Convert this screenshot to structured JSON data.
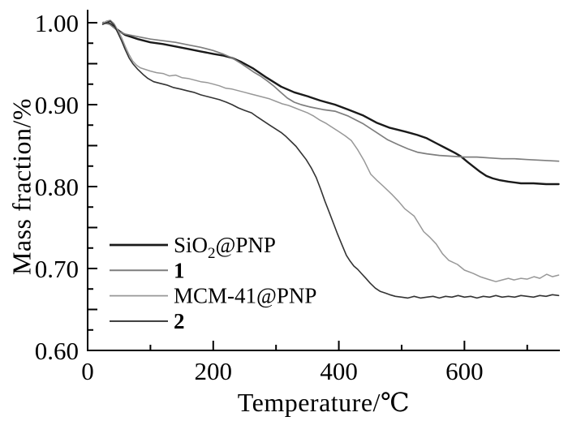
{
  "chart_data": {
    "type": "line",
    "title": "",
    "xlabel": "Temperature/℃",
    "ylabel": "Mass fraction/%",
    "xlim": [
      0,
      752
    ],
    "ylim": [
      0.6,
      1.0
    ],
    "x_major_tick_step": 200,
    "x_minor_tick_step": 100,
    "x_tick_labels": [
      "0",
      "200",
      "400",
      "600"
    ],
    "x_tick_label_values": [
      0,
      200,
      400,
      600
    ],
    "y_tick_minor_step": 0.025,
    "y_tick_labels": [
      "1.00",
      "0.90",
      "0.80",
      "0.70",
      "0.60"
    ],
    "y_tick_label_values": [
      1.0,
      0.9,
      0.8,
      0.7,
      0.6
    ],
    "grid": "off",
    "axis_color": "#000000",
    "legend": {
      "position": "lower-left",
      "entries": [
        {
          "label": "SiO2@PNP",
          "label_main": "SiO",
          "label_sub": "2",
          "label_rest": "@PNP",
          "bold": false,
          "color": "#1a1a1a",
          "linewidth": 2.4
        },
        {
          "label": "1",
          "label_main": "1",
          "label_sub": "",
          "label_rest": "",
          "bold": true,
          "color": "#7e7e7e",
          "linewidth": 1.7
        },
        {
          "label": "MCM-41@PNP",
          "label_main": "MCM-41@PNP",
          "label_sub": "",
          "label_rest": "",
          "bold": false,
          "color": "#989898",
          "linewidth": 1.5
        },
        {
          "label": "2",
          "label_main": "2",
          "label_sub": "",
          "label_rest": "",
          "bold": true,
          "color": "#333333",
          "linewidth": 1.6
        }
      ]
    },
    "series": [
      {
        "name": "SiO2@PNP",
        "color": "#1a1a1a",
        "linewidth": 2.4,
        "style": "smooth",
        "points": [
          [
            25,
            1.0
          ],
          [
            35,
            0.999
          ],
          [
            45,
            0.993
          ],
          [
            50,
            0.99
          ],
          [
            60,
            0.985
          ],
          [
            80,
            0.98
          ],
          [
            100,
            0.976
          ],
          [
            120,
            0.974
          ],
          [
            140,
            0.971
          ],
          [
            160,
            0.968
          ],
          [
            180,
            0.965
          ],
          [
            200,
            0.962
          ],
          [
            215,
            0.96
          ],
          [
            230,
            0.957
          ],
          [
            245,
            0.952
          ],
          [
            264,
            0.944
          ],
          [
            285,
            0.933
          ],
          [
            308,
            0.922
          ],
          [
            329,
            0.915
          ],
          [
            351,
            0.91
          ],
          [
            370,
            0.905
          ],
          [
            394,
            0.9
          ],
          [
            415,
            0.894
          ],
          [
            438,
            0.887
          ],
          [
            460,
            0.878
          ],
          [
            480,
            0.872
          ],
          [
            506,
            0.867
          ],
          [
            525,
            0.863
          ],
          [
            540,
            0.859
          ],
          [
            555,
            0.853
          ],
          [
            570,
            0.847
          ],
          [
            585,
            0.841
          ],
          [
            594,
            0.837
          ],
          [
            605,
            0.83
          ],
          [
            615,
            0.824
          ],
          [
            625,
            0.818
          ],
          [
            635,
            0.813
          ],
          [
            645,
            0.81
          ],
          [
            655,
            0.808
          ],
          [
            670,
            0.806
          ],
          [
            690,
            0.804
          ],
          [
            710,
            0.804
          ],
          [
            730,
            0.803
          ],
          [
            750,
            0.803
          ]
        ]
      },
      {
        "name": "1",
        "color": "#7e7e7e",
        "linewidth": 1.7,
        "style": "smooth",
        "points": [
          [
            25,
            1.0
          ],
          [
            35,
            0.998
          ],
          [
            45,
            0.992
          ],
          [
            50,
            0.989
          ],
          [
            60,
            0.986
          ],
          [
            80,
            0.983
          ],
          [
            100,
            0.98
          ],
          [
            120,
            0.978
          ],
          [
            140,
            0.976
          ],
          [
            160,
            0.973
          ],
          [
            180,
            0.97
          ],
          [
            200,
            0.966
          ],
          [
            215,
            0.962
          ],
          [
            230,
            0.957
          ],
          [
            245,
            0.95
          ],
          [
            264,
            0.94
          ],
          [
            275,
            0.935
          ],
          [
            286,
            0.929
          ],
          [
            296,
            0.923
          ],
          [
            306,
            0.916
          ],
          [
            318,
            0.908
          ],
          [
            329,
            0.903
          ],
          [
            340,
            0.9
          ],
          [
            355,
            0.897
          ],
          [
            375,
            0.894
          ],
          [
            394,
            0.892
          ],
          [
            415,
            0.886
          ],
          [
            438,
            0.877
          ],
          [
            458,
            0.867
          ],
          [
            478,
            0.857
          ],
          [
            495,
            0.851
          ],
          [
            510,
            0.846
          ],
          [
            525,
            0.842
          ],
          [
            540,
            0.84
          ],
          [
            560,
            0.838
          ],
          [
            580,
            0.837
          ],
          [
            600,
            0.836
          ],
          [
            620,
            0.836
          ],
          [
            640,
            0.835
          ],
          [
            660,
            0.834
          ],
          [
            680,
            0.834
          ],
          [
            700,
            0.833
          ],
          [
            725,
            0.832
          ],
          [
            750,
            0.831
          ]
        ]
      },
      {
        "name": "MCM-41@PNP",
        "color": "#989898",
        "linewidth": 1.5,
        "style": "noisy",
        "points": [
          [
            24,
            0.999
          ],
          [
            30,
            1.002
          ],
          [
            36,
            1.003
          ],
          [
            42,
            0.999
          ],
          [
            48,
            0.991
          ],
          [
            54,
            0.982
          ],
          [
            60,
            0.971
          ],
          [
            66,
            0.961
          ],
          [
            72,
            0.953
          ],
          [
            78,
            0.948
          ],
          [
            84,
            0.945
          ],
          [
            92,
            0.943
          ],
          [
            100,
            0.941
          ],
          [
            110,
            0.939
          ],
          [
            120,
            0.938
          ],
          [
            130,
            0.935
          ],
          [
            140,
            0.936
          ],
          [
            150,
            0.933
          ],
          [
            160,
            0.932
          ],
          [
            170,
            0.93
          ],
          [
            180,
            0.928
          ],
          [
            190,
            0.927
          ],
          [
            200,
            0.925
          ],
          [
            210,
            0.923
          ],
          [
            220,
            0.92
          ],
          [
            230,
            0.919
          ],
          [
            240,
            0.917
          ],
          [
            250,
            0.915
          ],
          [
            260,
            0.913
          ],
          [
            270,
            0.911
          ],
          [
            280,
            0.909
          ],
          [
            290,
            0.907
          ],
          [
            300,
            0.904
          ],
          [
            310,
            0.901
          ],
          [
            320,
            0.899
          ],
          [
            330,
            0.896
          ],
          [
            340,
            0.893
          ],
          [
            350,
            0.89
          ],
          [
            360,
            0.886
          ],
          [
            370,
            0.881
          ],
          [
            380,
            0.877
          ],
          [
            390,
            0.872
          ],
          [
            400,
            0.867
          ],
          [
            410,
            0.862
          ],
          [
            420,
            0.856
          ],
          [
            430,
            0.845
          ],
          [
            440,
            0.832
          ],
          [
            451,
            0.815
          ],
          [
            460,
            0.808
          ],
          [
            470,
            0.801
          ],
          [
            485,
            0.79
          ],
          [
            495,
            0.782
          ],
          [
            505,
            0.773
          ],
          [
            520,
            0.764
          ],
          [
            535,
            0.745
          ],
          [
            545,
            0.738
          ],
          [
            555,
            0.73
          ],
          [
            565,
            0.718
          ],
          [
            575,
            0.71
          ],
          [
            589,
            0.705
          ],
          [
            600,
            0.698
          ],
          [
            614,
            0.694
          ],
          [
            625,
            0.69
          ],
          [
            637,
            0.687
          ],
          [
            650,
            0.684
          ],
          [
            660,
            0.686
          ],
          [
            670,
            0.688
          ],
          [
            679,
            0.686
          ],
          [
            690,
            0.688
          ],
          [
            700,
            0.687
          ],
          [
            711,
            0.69
          ],
          [
            720,
            0.688
          ],
          [
            731,
            0.693
          ],
          [
            740,
            0.69
          ],
          [
            750,
            0.692
          ]
        ]
      },
      {
        "name": "2",
        "color": "#333333",
        "linewidth": 1.6,
        "style": "noisy",
        "points": [
          [
            24,
            0.998
          ],
          [
            30,
            1.0
          ],
          [
            36,
            1.002
          ],
          [
            42,
            0.997
          ],
          [
            48,
            0.988
          ],
          [
            54,
            0.978
          ],
          [
            60,
            0.967
          ],
          [
            66,
            0.957
          ],
          [
            72,
            0.95
          ],
          [
            80,
            0.943
          ],
          [
            88,
            0.937
          ],
          [
            96,
            0.932
          ],
          [
            105,
            0.928
          ],
          [
            115,
            0.926
          ],
          [
            126,
            0.924
          ],
          [
            136,
            0.921
          ],
          [
            148,
            0.919
          ],
          [
            158,
            0.917
          ],
          [
            169,
            0.915
          ],
          [
            180,
            0.912
          ],
          [
            190,
            0.91
          ],
          [
            200,
            0.908
          ],
          [
            210,
            0.906
          ],
          [
            221,
            0.903
          ],
          [
            230,
            0.9
          ],
          [
            240,
            0.896
          ],
          [
            250,
            0.893
          ],
          [
            261,
            0.89
          ],
          [
            270,
            0.885
          ],
          [
            280,
            0.88
          ],
          [
            290,
            0.875
          ],
          [
            300,
            0.87
          ],
          [
            308,
            0.866
          ],
          [
            316,
            0.861
          ],
          [
            324,
            0.855
          ],
          [
            332,
            0.849
          ],
          [
            340,
            0.841
          ],
          [
            348,
            0.833
          ],
          [
            356,
            0.823
          ],
          [
            364,
            0.811
          ],
          [
            371,
            0.797
          ],
          [
            378,
            0.782
          ],
          [
            385,
            0.768
          ],
          [
            392,
            0.754
          ],
          [
            398,
            0.742
          ],
          [
            405,
            0.729
          ],
          [
            412,
            0.716
          ],
          [
            418,
            0.709
          ],
          [
            424,
            0.703
          ],
          [
            430,
            0.699
          ],
          [
            436,
            0.694
          ],
          [
            443,
            0.688
          ],
          [
            450,
            0.682
          ],
          [
            458,
            0.676
          ],
          [
            466,
            0.672
          ],
          [
            474,
            0.67
          ],
          [
            481,
            0.668
          ],
          [
            490,
            0.666
          ],
          [
            500,
            0.665
          ],
          [
            510,
            0.664
          ],
          [
            520,
            0.666
          ],
          [
            530,
            0.664
          ],
          [
            540,
            0.665
          ],
          [
            550,
            0.666
          ],
          [
            560,
            0.664
          ],
          [
            570,
            0.666
          ],
          [
            580,
            0.665
          ],
          [
            590,
            0.667
          ],
          [
            600,
            0.665
          ],
          [
            610,
            0.666
          ],
          [
            620,
            0.664
          ],
          [
            630,
            0.666
          ],
          [
            640,
            0.665
          ],
          [
            650,
            0.667
          ],
          [
            660,
            0.665
          ],
          [
            670,
            0.666
          ],
          [
            680,
            0.665
          ],
          [
            690,
            0.667
          ],
          [
            700,
            0.666
          ],
          [
            710,
            0.665
          ],
          [
            720,
            0.667
          ],
          [
            730,
            0.666
          ],
          [
            740,
            0.668
          ],
          [
            750,
            0.667
          ]
        ]
      }
    ]
  }
}
